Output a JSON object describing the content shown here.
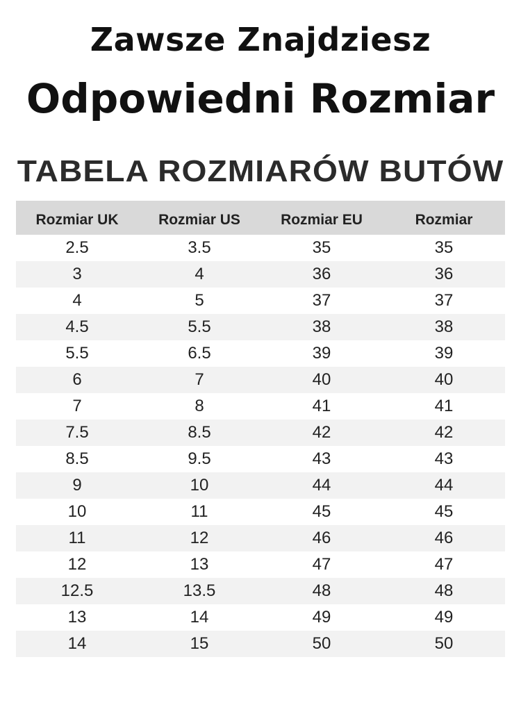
{
  "title": {
    "line1": "Zawsze Znajdziesz",
    "line2": "Odpowiedni Rozmiar",
    "subtitle": "TABELA ROZMIARÓW BUTÓW"
  },
  "table": {
    "headers": [
      "Rozmiar UK",
      "Rozmiar US",
      "Rozmiar EU",
      "Rozmiar"
    ],
    "rows": [
      [
        "2.5",
        "3.5",
        "35",
        "35"
      ],
      [
        "3",
        "4",
        "36",
        "36"
      ],
      [
        "4",
        "5",
        "37",
        "37"
      ],
      [
        "4.5",
        "5.5",
        "38",
        "38"
      ],
      [
        "5.5",
        "6.5",
        "39",
        "39"
      ],
      [
        "6",
        "7",
        "40",
        "40"
      ],
      [
        "7",
        "8",
        "41",
        "41"
      ],
      [
        "7.5",
        "8.5",
        "42",
        "42"
      ],
      [
        "8.5",
        "9.5",
        "43",
        "43"
      ],
      [
        "9",
        "10",
        "44",
        "44"
      ],
      [
        "10",
        "11",
        "45",
        "45"
      ],
      [
        "11",
        "12",
        "46",
        "46"
      ],
      [
        "12",
        "13",
        "47",
        "47"
      ],
      [
        "12.5",
        "13.5",
        "48",
        "48"
      ],
      [
        "13",
        "14",
        "49",
        "49"
      ],
      [
        "14",
        "15",
        "50",
        "50"
      ]
    ]
  },
  "colors": {
    "header_bg": "#d9d9d9",
    "alt_row_bg": "#f2f2f2"
  }
}
